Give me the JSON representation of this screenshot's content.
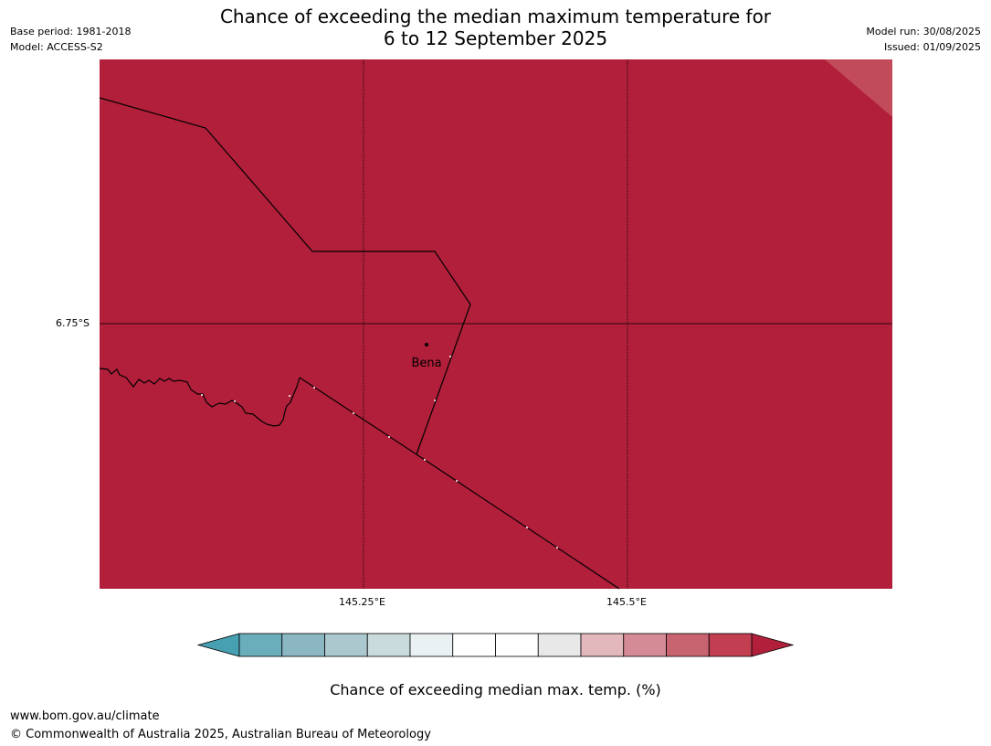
{
  "header": {
    "title_line1": "Chance of exceeding the median maximum temperature for",
    "title_line2": "6 to 12 September 2025",
    "base_period": "Base period: 1981-2018",
    "model": "Model: ACCESS-S2",
    "model_run": "Model run: 30/08/2025",
    "issued": "Issued: 01/09/2025"
  },
  "map": {
    "place_name": "Bena",
    "lat_label": "6.75°S",
    "lon_labels": [
      "145.25°E",
      "145.5°E"
    ],
    "fill_color": "#b11f3a",
    "corner_color": "#c24b59"
  },
  "colorbar": {
    "ticks": [
      "20",
      "25",
      "30",
      "35",
      "40",
      "45",
      "50",
      "55",
      "60",
      "65",
      "70",
      "75",
      "80"
    ],
    "colors": [
      "#6aadbb",
      "#8bb7c2",
      "#abc8ce",
      "#cadbde",
      "#e9f1f3",
      "#ffffff",
      "#ffffff",
      "#e8e8e8",
      "#e2b8bd",
      "#d48b96",
      "#c86470",
      "#c13f50"
    ],
    "under_color": "#47a0b1",
    "over_color": "#b11f3a",
    "label": "Chance of exceeding median max. temp. (%)"
  },
  "footer": {
    "url": "www.bom.gov.au/climate",
    "copyright": "© Commonwealth of Australia 2025, Australian Bureau of Meteorology"
  }
}
